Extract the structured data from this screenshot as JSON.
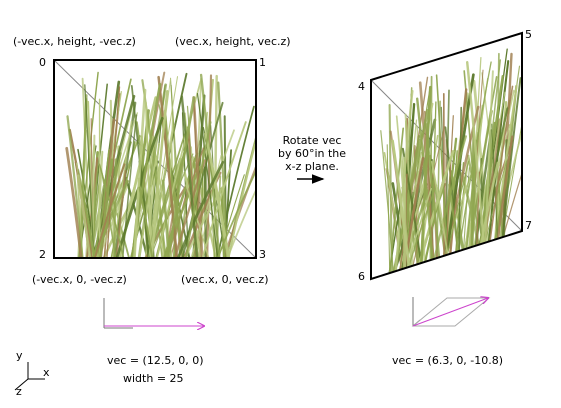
{
  "corner_labels": {
    "top_left": "(-vec.x, height, -vec.z)",
    "top_right": "(vec.x, height, vec.z)",
    "bottom_left": "(-vec.x, 0, -vec.z)",
    "bottom_right": "(vec.x, 0, vec.z)"
  },
  "vertex_ids": {
    "v0": "0",
    "v1": "1",
    "v2": "2",
    "v3": "3",
    "v4": "4",
    "v5": "5",
    "v6": "6",
    "v7": "7"
  },
  "caption": {
    "line1": "Rotate vec",
    "line2": "by 60°in the",
    "line3": "x-z plane."
  },
  "left_vector": {
    "equation": "vec = (12.5, 0, 0)",
    "width": "width = 25"
  },
  "right_vector": {
    "equation": "vec = (6.3, 0, -10.8)"
  },
  "axes": {
    "y": "y",
    "x": "x",
    "z": "z"
  },
  "colors": {
    "vector_magenta": "#cc44cc",
    "axis_gray": "#777777",
    "frame_black": "#000000",
    "grass_light": "#b8c880",
    "grass_mid": "#8fa650",
    "grass_dark": "#5d7a2e",
    "grass_tan": "#a08050"
  },
  "icons": {
    "grass_texture": "grass-billboard-texture",
    "rotation_arrow": "right-arrow-icon"
  }
}
